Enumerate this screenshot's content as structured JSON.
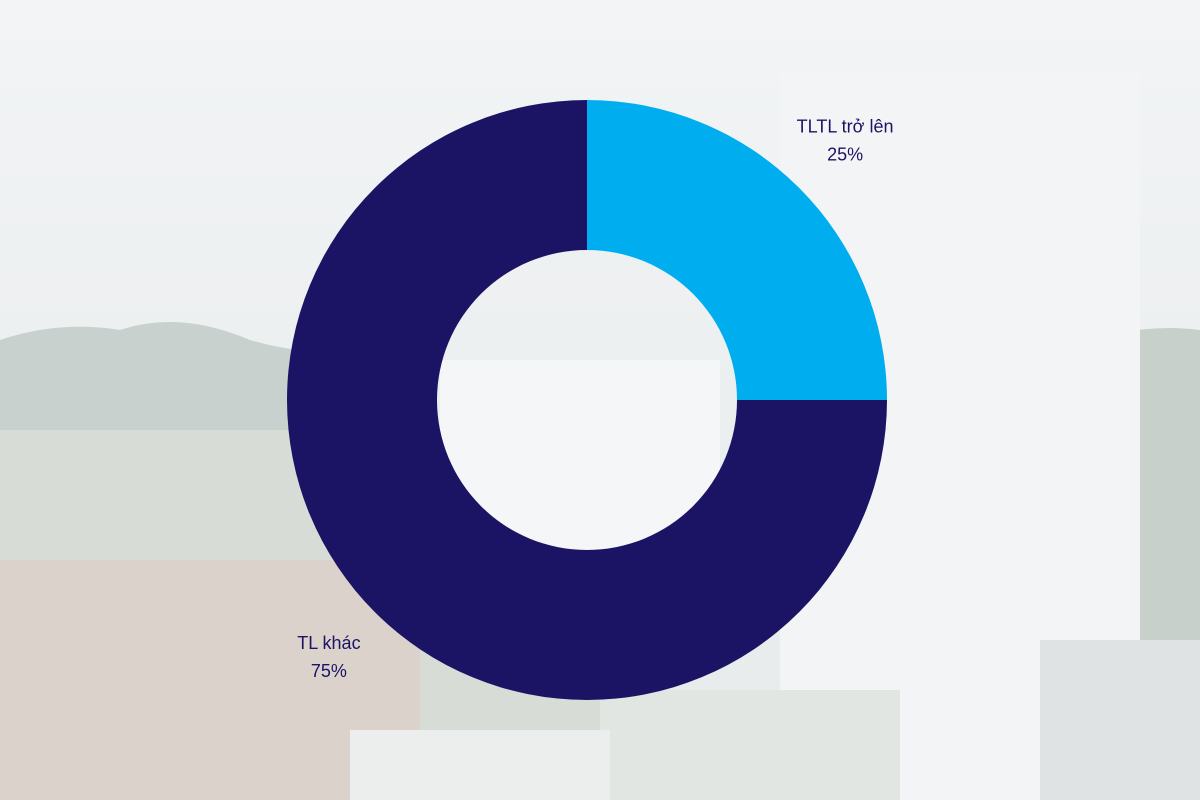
{
  "chart_data": {
    "type": "pie",
    "donut": true,
    "categories": [
      "TLTL trở lên",
      "TL khác"
    ],
    "values": [
      25,
      75
    ],
    "value_labels": [
      "25%",
      "75%"
    ],
    "colors": [
      "#00aeef",
      "#1b1464"
    ]
  }
}
